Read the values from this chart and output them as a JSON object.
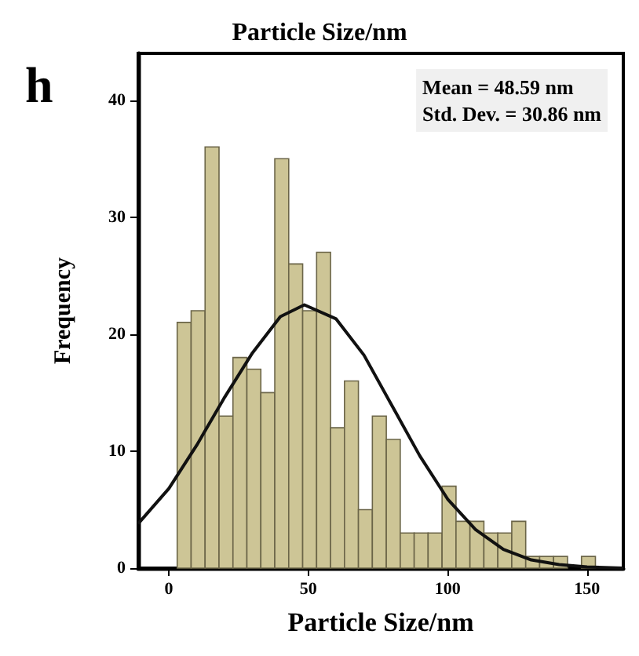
{
  "chart_data": {
    "type": "histogram",
    "title": "Particle Size/nm",
    "xlabel": "Particle Size/nm",
    "ylabel": "Frequency",
    "annotations": [
      "h",
      "Mean = 48.59 nm",
      "Std. Dev. = 30.86 nm"
    ],
    "bins": [
      3,
      8,
      13,
      18,
      23,
      28,
      33,
      38,
      43,
      48,
      53,
      58,
      63,
      68,
      73,
      78,
      83,
      88,
      93,
      98,
      103,
      108,
      113,
      118,
      123,
      128,
      133,
      138,
      143,
      148,
      153
    ],
    "values": [
      21,
      22,
      36,
      13,
      18,
      17,
      15,
      35,
      26,
      22,
      27,
      12,
      16,
      5,
      13,
      11,
      3,
      3,
      3,
      7,
      4,
      4,
      3,
      3,
      4,
      1,
      1,
      1,
      0,
      1
    ],
    "color": "#cdc596",
    "series": [
      {
        "type": "line",
        "color": "#111111",
        "x": [
          -11,
          0,
          10,
          20,
          30,
          40,
          48.6,
          60,
          70,
          80,
          90,
          100,
          110,
          120,
          130,
          140,
          150,
          163
        ],
        "values": [
          3.8,
          6.8,
          10.5,
          14.6,
          18.4,
          21.5,
          22.5,
          21.3,
          18.2,
          13.9,
          9.6,
          5.9,
          3.3,
          1.6,
          0.7,
          0.3,
          0.1,
          0
        ]
      }
    ],
    "xlim": [
      -11,
      163
    ],
    "xticks": [
      0,
      50,
      100,
      150
    ],
    "ylim": [
      0,
      44
    ],
    "yticks": [
      0,
      10,
      20,
      30,
      40
    ],
    "grid": false
  }
}
